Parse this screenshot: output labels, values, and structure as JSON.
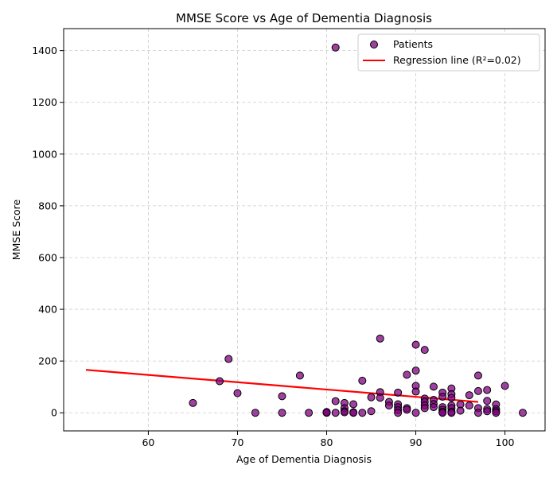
{
  "chart_data": {
    "type": "scatter",
    "title": "MMSE Score vs Age of Dementia Diagnosis",
    "xlabel": "Age of Dementia Diagnosis",
    "ylabel": "MMSE Score",
    "xlim": [
      50.5,
      104.5
    ],
    "ylim": [
      -70,
      1485
    ],
    "xticks": [
      60,
      70,
      80,
      90,
      100
    ],
    "yticks": [
      0,
      200,
      400,
      600,
      800,
      1000,
      1200,
      1400
    ],
    "grid": true,
    "legend_position": "top-right",
    "series": [
      {
        "name": "Patients",
        "kind": "scatter",
        "color": "#800080",
        "edge_color": "#000000",
        "points": [
          [
            65,
            38
          ],
          [
            68,
            122
          ],
          [
            69,
            208
          ],
          [
            70,
            76
          ],
          [
            72,
            0
          ],
          [
            75,
            64
          ],
          [
            75,
            0
          ],
          [
            77,
            144
          ],
          [
            78,
            0
          ],
          [
            80,
            0
          ],
          [
            80,
            3
          ],
          [
            80,
            1
          ],
          [
            81,
            1412
          ],
          [
            81,
            45
          ],
          [
            81,
            0
          ],
          [
            82,
            38
          ],
          [
            82,
            18
          ],
          [
            82,
            6
          ],
          [
            82,
            2
          ],
          [
            83,
            33
          ],
          [
            83,
            2
          ],
          [
            83,
            0
          ],
          [
            84,
            124
          ],
          [
            84,
            0
          ],
          [
            85,
            60
          ],
          [
            85,
            6
          ],
          [
            86,
            287
          ],
          [
            86,
            80
          ],
          [
            86,
            58
          ],
          [
            87,
            42
          ],
          [
            87,
            28
          ],
          [
            88,
            78
          ],
          [
            88,
            33
          ],
          [
            88,
            22
          ],
          [
            88,
            10
          ],
          [
            88,
            0
          ],
          [
            89,
            147
          ],
          [
            89,
            18
          ],
          [
            89,
            12
          ],
          [
            90,
            263
          ],
          [
            90,
            163
          ],
          [
            90,
            104
          ],
          [
            90,
            82
          ],
          [
            90,
            0
          ],
          [
            91,
            243
          ],
          [
            91,
            55
          ],
          [
            91,
            42
          ],
          [
            91,
            28
          ],
          [
            91,
            18
          ],
          [
            92,
            101
          ],
          [
            92,
            50
          ],
          [
            92,
            34
          ],
          [
            92,
            22
          ],
          [
            93,
            78
          ],
          [
            93,
            62
          ],
          [
            93,
            22
          ],
          [
            93,
            12
          ],
          [
            93,
            4
          ],
          [
            93,
            0
          ],
          [
            94,
            94
          ],
          [
            94,
            72
          ],
          [
            94,
            58
          ],
          [
            94,
            28
          ],
          [
            94,
            18
          ],
          [
            94,
            4
          ],
          [
            94,
            0
          ],
          [
            95,
            32
          ],
          [
            95,
            8
          ],
          [
            96,
            68
          ],
          [
            96,
            28
          ],
          [
            97,
            144
          ],
          [
            97,
            84
          ],
          [
            97,
            18
          ],
          [
            97,
            0
          ],
          [
            98,
            88
          ],
          [
            98,
            46
          ],
          [
            98,
            14
          ],
          [
            98,
            6
          ],
          [
            99,
            32
          ],
          [
            99,
            14
          ],
          [
            99,
            6
          ],
          [
            99,
            0
          ],
          [
            100,
            104
          ],
          [
            102,
            0
          ]
        ]
      },
      {
        "name": "Regression line (R²=0.02)",
        "kind": "line",
        "color": "#ff0000",
        "x": [
          53,
          97
        ],
        "y": [
          166,
          42
        ]
      }
    ]
  }
}
